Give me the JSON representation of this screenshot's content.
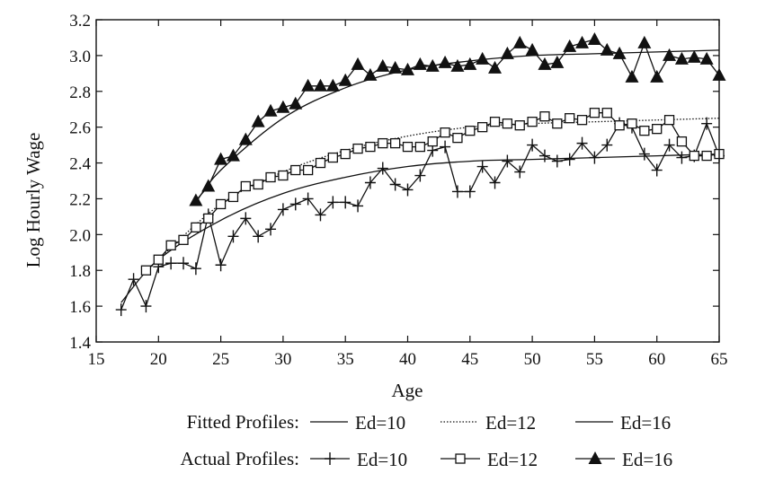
{
  "chart_data": {
    "type": "line",
    "title": "",
    "xlabel": "Age",
    "ylabel": "Log Hourly Wage",
    "xlim": [
      15,
      65
    ],
    "ylim": [
      1.4,
      3.2
    ],
    "xticks": [
      "15",
      "20",
      "25",
      "30",
      "35",
      "40",
      "45",
      "50",
      "55",
      "60",
      "65"
    ],
    "yticks": [
      "1.4",
      "1.6",
      "1.8",
      "2.0",
      "2.2",
      "2.4",
      "2.6",
      "2.8",
      "3.0",
      "3.2"
    ],
    "grid": false,
    "legend_position": "bottom",
    "legend": {
      "fitted_label": "Fitted Profiles:",
      "actual_label": "Actual Profiles:",
      "fitted_entries": [
        "Ed=10",
        "Ed=12",
        "Ed=16"
      ],
      "actual_entries": [
        "Ed=10",
        "Ed=12",
        "Ed=16"
      ]
    },
    "fitted_series": [
      {
        "name": "Ed=10",
        "style": "solid",
        "x": [
          17,
          20,
          25,
          30,
          35,
          40,
          45,
          50,
          55,
          60,
          65
        ],
        "y": [
          1.62,
          1.86,
          2.08,
          2.23,
          2.32,
          2.38,
          2.41,
          2.42,
          2.43,
          2.44,
          2.45
        ]
      },
      {
        "name": "Ed=12",
        "style": "dotted",
        "x": [
          19,
          20,
          25,
          30,
          35,
          40,
          45,
          50,
          55,
          60,
          65
        ],
        "y": [
          1.78,
          1.86,
          2.17,
          2.35,
          2.47,
          2.55,
          2.6,
          2.62,
          2.63,
          2.64,
          2.65
        ]
      },
      {
        "name": "Ed=16",
        "style": "solid",
        "x": [
          23,
          25,
          30,
          35,
          40,
          45,
          50,
          55,
          60,
          65
        ],
        "y": [
          2.18,
          2.36,
          2.65,
          2.82,
          2.92,
          2.97,
          3.0,
          3.01,
          3.02,
          3.03
        ]
      }
    ],
    "series": [
      {
        "name": "Ed=10",
        "marker": "plus",
        "x": [
          17,
          18,
          19,
          20,
          21,
          22,
          23,
          24,
          25,
          26,
          27,
          28,
          29,
          30,
          31,
          32,
          33,
          34,
          35,
          36,
          37,
          38,
          39,
          40,
          41,
          42,
          43,
          44,
          45,
          46,
          47,
          48,
          49,
          50,
          51,
          52,
          53,
          54,
          55,
          56,
          57,
          58,
          59,
          60,
          61,
          62,
          63,
          64,
          65
        ],
        "y": [
          1.58,
          1.75,
          1.6,
          1.82,
          1.84,
          1.84,
          1.81,
          2.11,
          1.83,
          1.99,
          2.09,
          1.99,
          2.03,
          2.14,
          2.17,
          2.2,
          2.11,
          2.18,
          2.18,
          2.16,
          2.29,
          2.37,
          2.28,
          2.25,
          2.33,
          2.47,
          2.49,
          2.24,
          2.24,
          2.38,
          2.29,
          2.41,
          2.35,
          2.5,
          2.44,
          2.41,
          2.42,
          2.51,
          2.43,
          2.5,
          2.62,
          2.6,
          2.45,
          2.36,
          2.5,
          2.43,
          2.44,
          2.62,
          2.44
        ]
      },
      {
        "name": "Ed=12",
        "marker": "square",
        "x": [
          19,
          20,
          21,
          22,
          23,
          24,
          25,
          26,
          27,
          28,
          29,
          30,
          31,
          32,
          33,
          34,
          35,
          36,
          37,
          38,
          39,
          40,
          41,
          42,
          43,
          44,
          45,
          46,
          47,
          48,
          49,
          50,
          51,
          52,
          53,
          54,
          55,
          56,
          57,
          58,
          59,
          60,
          61,
          62,
          63,
          64,
          65
        ],
        "y": [
          1.8,
          1.86,
          1.94,
          1.97,
          2.04,
          2.09,
          2.17,
          2.21,
          2.27,
          2.28,
          2.32,
          2.33,
          2.36,
          2.36,
          2.4,
          2.43,
          2.45,
          2.48,
          2.49,
          2.51,
          2.51,
          2.49,
          2.49,
          2.52,
          2.57,
          2.54,
          2.58,
          2.6,
          2.63,
          2.62,
          2.61,
          2.63,
          2.66,
          2.62,
          2.65,
          2.64,
          2.68,
          2.68,
          2.61,
          2.62,
          2.58,
          2.59,
          2.64,
          2.52,
          2.44,
          2.44,
          2.45
        ]
      },
      {
        "name": "Ed=16",
        "marker": "triangle",
        "x": [
          23,
          24,
          25,
          26,
          27,
          28,
          29,
          30,
          31,
          32,
          33,
          34,
          35,
          36,
          37,
          38,
          39,
          40,
          41,
          42,
          43,
          44,
          45,
          46,
          47,
          48,
          49,
          50,
          51,
          52,
          53,
          54,
          55,
          56,
          57,
          58,
          59,
          60,
          61,
          62,
          63,
          64,
          65
        ],
        "y": [
          2.19,
          2.27,
          2.42,
          2.44,
          2.53,
          2.63,
          2.69,
          2.71,
          2.73,
          2.83,
          2.83,
          2.83,
          2.86,
          2.95,
          2.89,
          2.94,
          2.93,
          2.92,
          2.95,
          2.94,
          2.96,
          2.94,
          2.95,
          2.98,
          2.93,
          3.01,
          3.07,
          3.03,
          2.95,
          2.96,
          3.05,
          3.07,
          3.09,
          3.03,
          3.01,
          2.88,
          3.07,
          2.88,
          3.0,
          2.98,
          2.99,
          2.98,
          2.89
        ]
      }
    ]
  }
}
